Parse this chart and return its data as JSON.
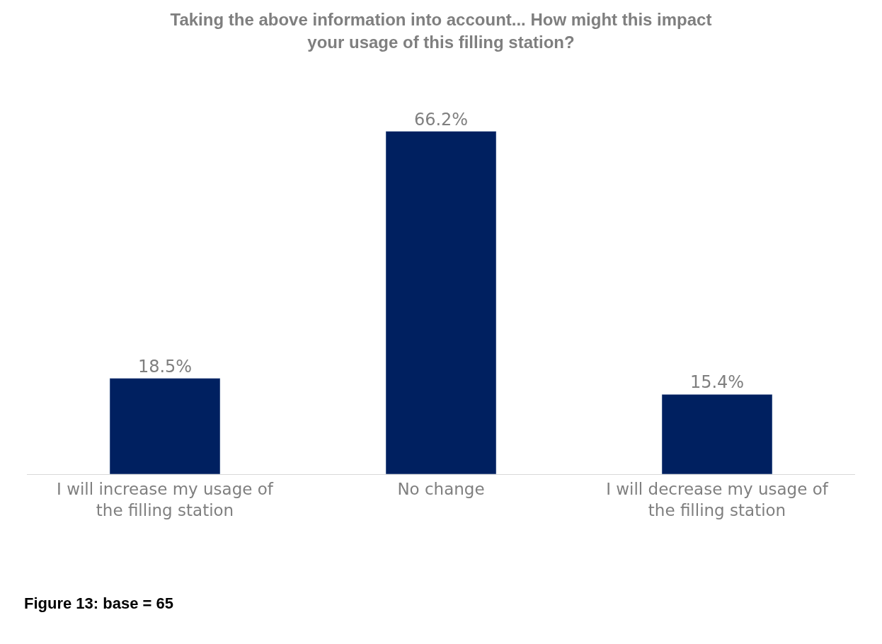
{
  "chart_data": {
    "type": "bar",
    "title": "Taking the above information into account... How might this impact your usage of this filling station?",
    "categories": [
      "I will increase my usage of the filling station",
      "No change",
      "I will decrease my usage of the filling station"
    ],
    "values": [
      18.5,
      66.2,
      15.4
    ],
    "value_labels": [
      "18.5%",
      "66.2%",
      "15.4%"
    ],
    "color": "#002060",
    "tick_labels": "x",
    "legend": false,
    "annotations": [
      "Figure 13: base = 65"
    ]
  }
}
